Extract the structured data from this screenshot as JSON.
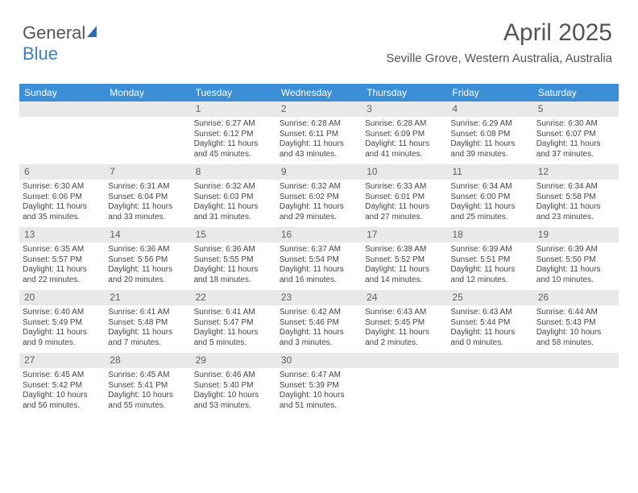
{
  "logo": {
    "text1": "General",
    "text2": "Blue"
  },
  "header": {
    "title": "April 2025",
    "subtitle": "Seville Grove, Western Australia, Australia"
  },
  "colors": {
    "header_bg": "#3b8fd6",
    "date_bg": "#e9e9e9",
    "text": "#444444"
  },
  "day_names": [
    "Sunday",
    "Monday",
    "Tuesday",
    "Wednesday",
    "Thursday",
    "Friday",
    "Saturday"
  ],
  "weeks": [
    [
      {
        "date": "",
        "lines": []
      },
      {
        "date": "",
        "lines": []
      },
      {
        "date": "1",
        "lines": [
          "Sunrise: 6:27 AM",
          "Sunset: 6:12 PM",
          "Daylight: 11 hours",
          "and 45 minutes."
        ]
      },
      {
        "date": "2",
        "lines": [
          "Sunrise: 6:28 AM",
          "Sunset: 6:11 PM",
          "Daylight: 11 hours",
          "and 43 minutes."
        ]
      },
      {
        "date": "3",
        "lines": [
          "Sunrise: 6:28 AM",
          "Sunset: 6:09 PM",
          "Daylight: 11 hours",
          "and 41 minutes."
        ]
      },
      {
        "date": "4",
        "lines": [
          "Sunrise: 6:29 AM",
          "Sunset: 6:08 PM",
          "Daylight: 11 hours",
          "and 39 minutes."
        ]
      },
      {
        "date": "5",
        "lines": [
          "Sunrise: 6:30 AM",
          "Sunset: 6:07 PM",
          "Daylight: 11 hours",
          "and 37 minutes."
        ]
      }
    ],
    [
      {
        "date": "6",
        "lines": [
          "Sunrise: 6:30 AM",
          "Sunset: 6:06 PM",
          "Daylight: 11 hours",
          "and 35 minutes."
        ]
      },
      {
        "date": "7",
        "lines": [
          "Sunrise: 6:31 AM",
          "Sunset: 6:04 PM",
          "Daylight: 11 hours",
          "and 33 minutes."
        ]
      },
      {
        "date": "8",
        "lines": [
          "Sunrise: 6:32 AM",
          "Sunset: 6:03 PM",
          "Daylight: 11 hours",
          "and 31 minutes."
        ]
      },
      {
        "date": "9",
        "lines": [
          "Sunrise: 6:32 AM",
          "Sunset: 6:02 PM",
          "Daylight: 11 hours",
          "and 29 minutes."
        ]
      },
      {
        "date": "10",
        "lines": [
          "Sunrise: 6:33 AM",
          "Sunset: 6:01 PM",
          "Daylight: 11 hours",
          "and 27 minutes."
        ]
      },
      {
        "date": "11",
        "lines": [
          "Sunrise: 6:34 AM",
          "Sunset: 6:00 PM",
          "Daylight: 11 hours",
          "and 25 minutes."
        ]
      },
      {
        "date": "12",
        "lines": [
          "Sunrise: 6:34 AM",
          "Sunset: 5:58 PM",
          "Daylight: 11 hours",
          "and 23 minutes."
        ]
      }
    ],
    [
      {
        "date": "13",
        "lines": [
          "Sunrise: 6:35 AM",
          "Sunset: 5:57 PM",
          "Daylight: 11 hours",
          "and 22 minutes."
        ]
      },
      {
        "date": "14",
        "lines": [
          "Sunrise: 6:36 AM",
          "Sunset: 5:56 PM",
          "Daylight: 11 hours",
          "and 20 minutes."
        ]
      },
      {
        "date": "15",
        "lines": [
          "Sunrise: 6:36 AM",
          "Sunset: 5:55 PM",
          "Daylight: 11 hours",
          "and 18 minutes."
        ]
      },
      {
        "date": "16",
        "lines": [
          "Sunrise: 6:37 AM",
          "Sunset: 5:54 PM",
          "Daylight: 11 hours",
          "and 16 minutes."
        ]
      },
      {
        "date": "17",
        "lines": [
          "Sunrise: 6:38 AM",
          "Sunset: 5:52 PM",
          "Daylight: 11 hours",
          "and 14 minutes."
        ]
      },
      {
        "date": "18",
        "lines": [
          "Sunrise: 6:39 AM",
          "Sunset: 5:51 PM",
          "Daylight: 11 hours",
          "and 12 minutes."
        ]
      },
      {
        "date": "19",
        "lines": [
          "Sunrise: 6:39 AM",
          "Sunset: 5:50 PM",
          "Daylight: 11 hours",
          "and 10 minutes."
        ]
      }
    ],
    [
      {
        "date": "20",
        "lines": [
          "Sunrise: 6:40 AM",
          "Sunset: 5:49 PM",
          "Daylight: 11 hours",
          "and 9 minutes."
        ]
      },
      {
        "date": "21",
        "lines": [
          "Sunrise: 6:41 AM",
          "Sunset: 5:48 PM",
          "Daylight: 11 hours",
          "and 7 minutes."
        ]
      },
      {
        "date": "22",
        "lines": [
          "Sunrise: 6:41 AM",
          "Sunset: 5:47 PM",
          "Daylight: 11 hours",
          "and 5 minutes."
        ]
      },
      {
        "date": "23",
        "lines": [
          "Sunrise: 6:42 AM",
          "Sunset: 5:46 PM",
          "Daylight: 11 hours",
          "and 3 minutes."
        ]
      },
      {
        "date": "24",
        "lines": [
          "Sunrise: 6:43 AM",
          "Sunset: 5:45 PM",
          "Daylight: 11 hours",
          "and 2 minutes."
        ]
      },
      {
        "date": "25",
        "lines": [
          "Sunrise: 6:43 AM",
          "Sunset: 5:44 PM",
          "Daylight: 11 hours",
          "and 0 minutes."
        ]
      },
      {
        "date": "26",
        "lines": [
          "Sunrise: 6:44 AM",
          "Sunset: 5:43 PM",
          "Daylight: 10 hours",
          "and 58 minutes."
        ]
      }
    ],
    [
      {
        "date": "27",
        "lines": [
          "Sunrise: 6:45 AM",
          "Sunset: 5:42 PM",
          "Daylight: 10 hours",
          "and 56 minutes."
        ]
      },
      {
        "date": "28",
        "lines": [
          "Sunrise: 6:45 AM",
          "Sunset: 5:41 PM",
          "Daylight: 10 hours",
          "and 55 minutes."
        ]
      },
      {
        "date": "29",
        "lines": [
          "Sunrise: 6:46 AM",
          "Sunset: 5:40 PM",
          "Daylight: 10 hours",
          "and 53 minutes."
        ]
      },
      {
        "date": "30",
        "lines": [
          "Sunrise: 6:47 AM",
          "Sunset: 5:39 PM",
          "Daylight: 10 hours",
          "and 51 minutes."
        ]
      },
      {
        "date": "",
        "lines": []
      },
      {
        "date": "",
        "lines": []
      },
      {
        "date": "",
        "lines": []
      }
    ]
  ]
}
